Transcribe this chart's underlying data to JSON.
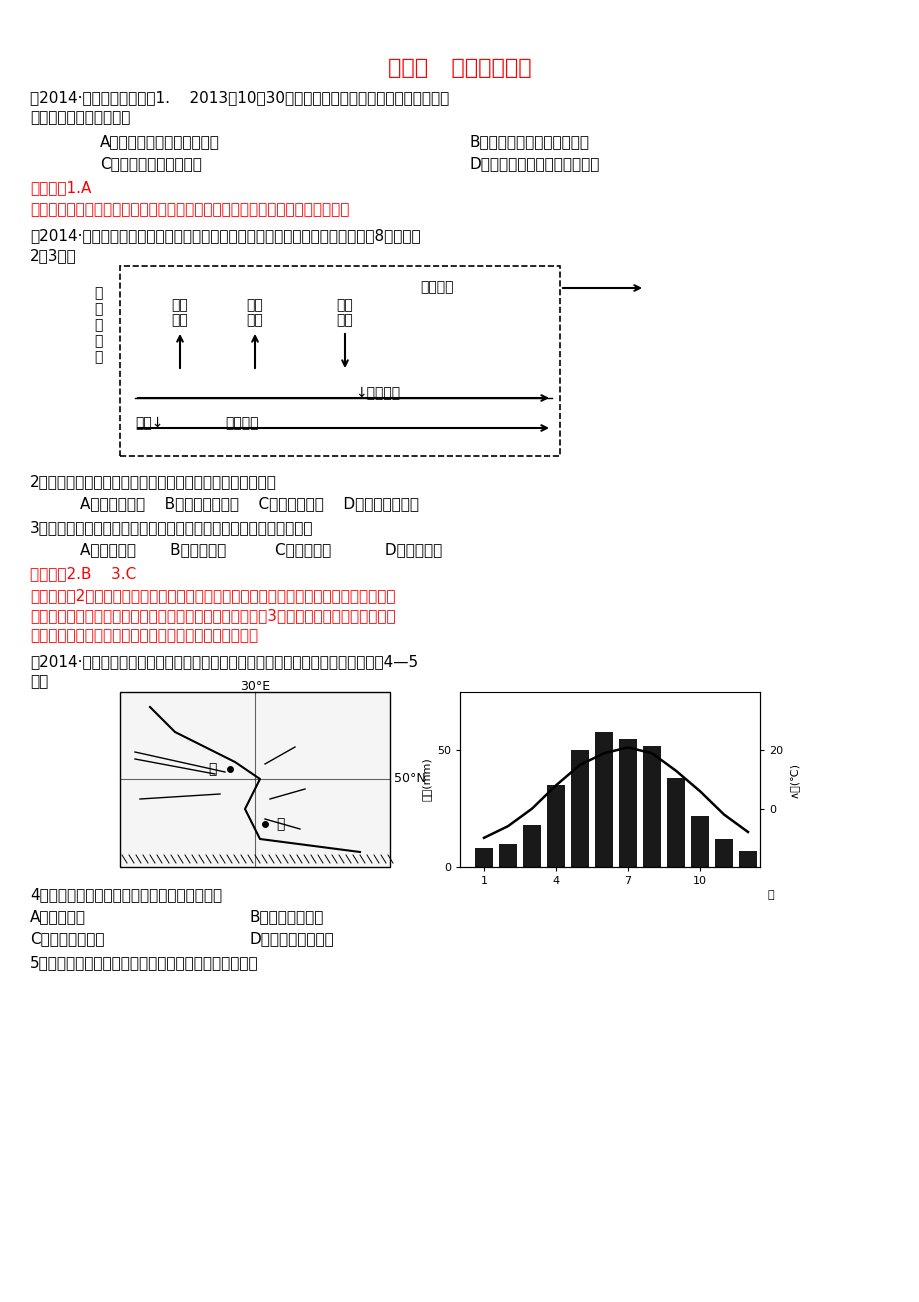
{
  "title": "专题三   水体运动规律",
  "bg_color": "#ffffff",
  "red_color": "#ff0000",
  "q1_line1": "、2014·广东芙名模拟一〃1.    2013年10月30日，中国最大淡水湖鄂阳湖出现严重低枯",
  "q1_line2": "水位。其最主要的原因是",
  "q1_A": "A．流域内年降水量异常偏少",
  "q1_B": "B．入湖河流中上游过度取水",
  "q1_C": "C．流域内植被破坏严重",
  "q1_D": "D．全球变暖导致冰雪融水减少",
  "ans1": "【答案】1.A",
  "ana1": "【解析】鄂阳湖处于东部季风区，由于流域内降水较常年偏少，导致水位较低。",
  "q2_intro1": "、2014·洛阳上学期期末、读「我国南方低山丘陵区某小流域水循环示意田」（图8），完成",
  "q2_intro2": "2～3题。",
  "q2_text": "2．因人类某种活动，使蜗腾作用显著减弱时，可能直接导致",
  "q2_opts": "A．降水量增加    B．地表径流增加    C．蜗发量不变    D．地下径流增加",
  "q3_text": "3．为了促使该流域水资源日趋丰富，下列措施中，效果最不明显的是",
  "q3_opts": "A．封山育林       B．退耕还林          C．修建梯田           D．修建水库",
  "ans23": "【答案】2.B    3.C",
  "ana23_1": "【答案】第2题，导致蜗腾作用减少的因素是人类乱砍滥伐，导致植被覆盖率减低，从而使",
  "ana23_2": "植被涵养水源的能力减弱，地表示增多，地表径流增加。第3题，修建梯田只能使坡地水流",
  "ana23_3": "速度减缓，减少水土流失，对增加水资源量没明显影响。",
  "q4_intro1": "、2014·浙江金华十枝上学期期末、读某区域水系分布简图和甲地气候统计图，完戁4—5",
  "q4_intro2": "题。",
  "q4_text": "4．甲处最高水位出现在春季，最主要的原因是",
  "q4_A": "A．降水最大",
  "q4_B": "B．积雪融水补给",
  "q4_C": "C．冰川融水补给",
  "q4_D": "D．地下水大量汇入",
  "q5_text": "5．与东侧相比，甲乙之间河段西侧支流少的主导因素是"
}
